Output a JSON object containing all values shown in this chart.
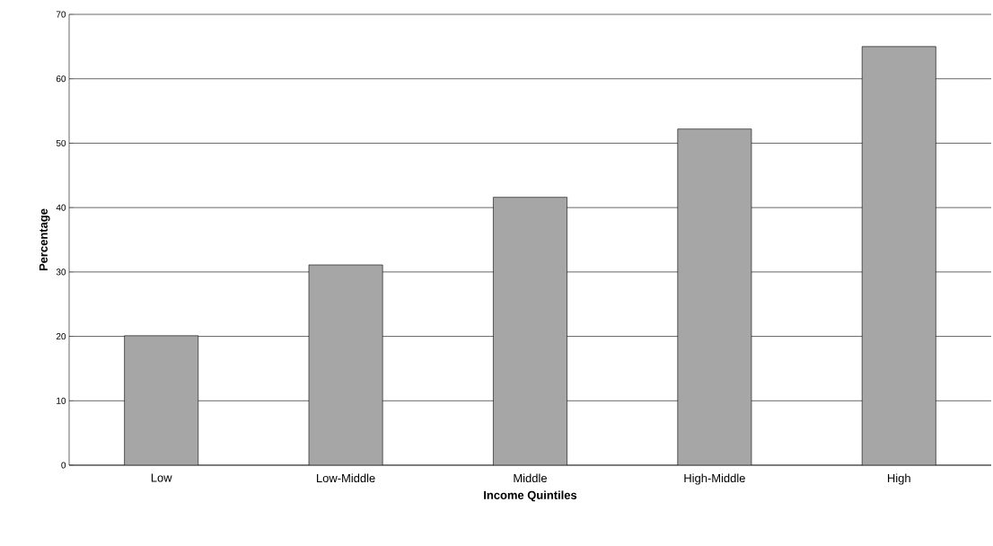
{
  "chart_data": {
    "type": "bar",
    "xlabel": "Income Quintiles",
    "ylabel": "Percentage",
    "categories": [
      "Low",
      "Low-Middle",
      "Middle",
      "High-Middle",
      "High"
    ],
    "values": [
      20.1,
      31.1,
      41.6,
      52.2,
      65.0
    ],
    "color": "#a6a6a6",
    "ylim": [
      0,
      70
    ],
    "yticks": [
      0,
      10,
      20,
      30,
      40,
      50,
      60,
      70
    ],
    "grid": "y"
  }
}
